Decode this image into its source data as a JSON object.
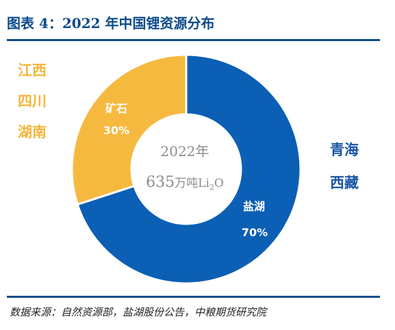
{
  "header": {
    "title": "图表 4：2022 年中国锂资源分布"
  },
  "footer": {
    "source": "数据来源：自然资源部，盐湖股份公告，中粮期货研究院"
  },
  "regions": {
    "left": [
      "江西",
      "四川",
      "湖南"
    ],
    "right": [
      "青海",
      "西藏"
    ]
  },
  "center": {
    "year": "2022年",
    "amount": "635",
    "unit": "万吨Li",
    "sub": "2",
    "tail": "O"
  },
  "colors": {
    "salt_lake": "#0b5fb4",
    "ore": "#f6b940",
    "title": "#0b4a8a",
    "center_text": "#8c8c8c"
  },
  "chart_data": {
    "type": "pie",
    "categories": [
      "盐湖",
      "矿石"
    ],
    "values": [
      70,
      30
    ],
    "labels": [
      "70%",
      "30%"
    ],
    "donut": true
  }
}
